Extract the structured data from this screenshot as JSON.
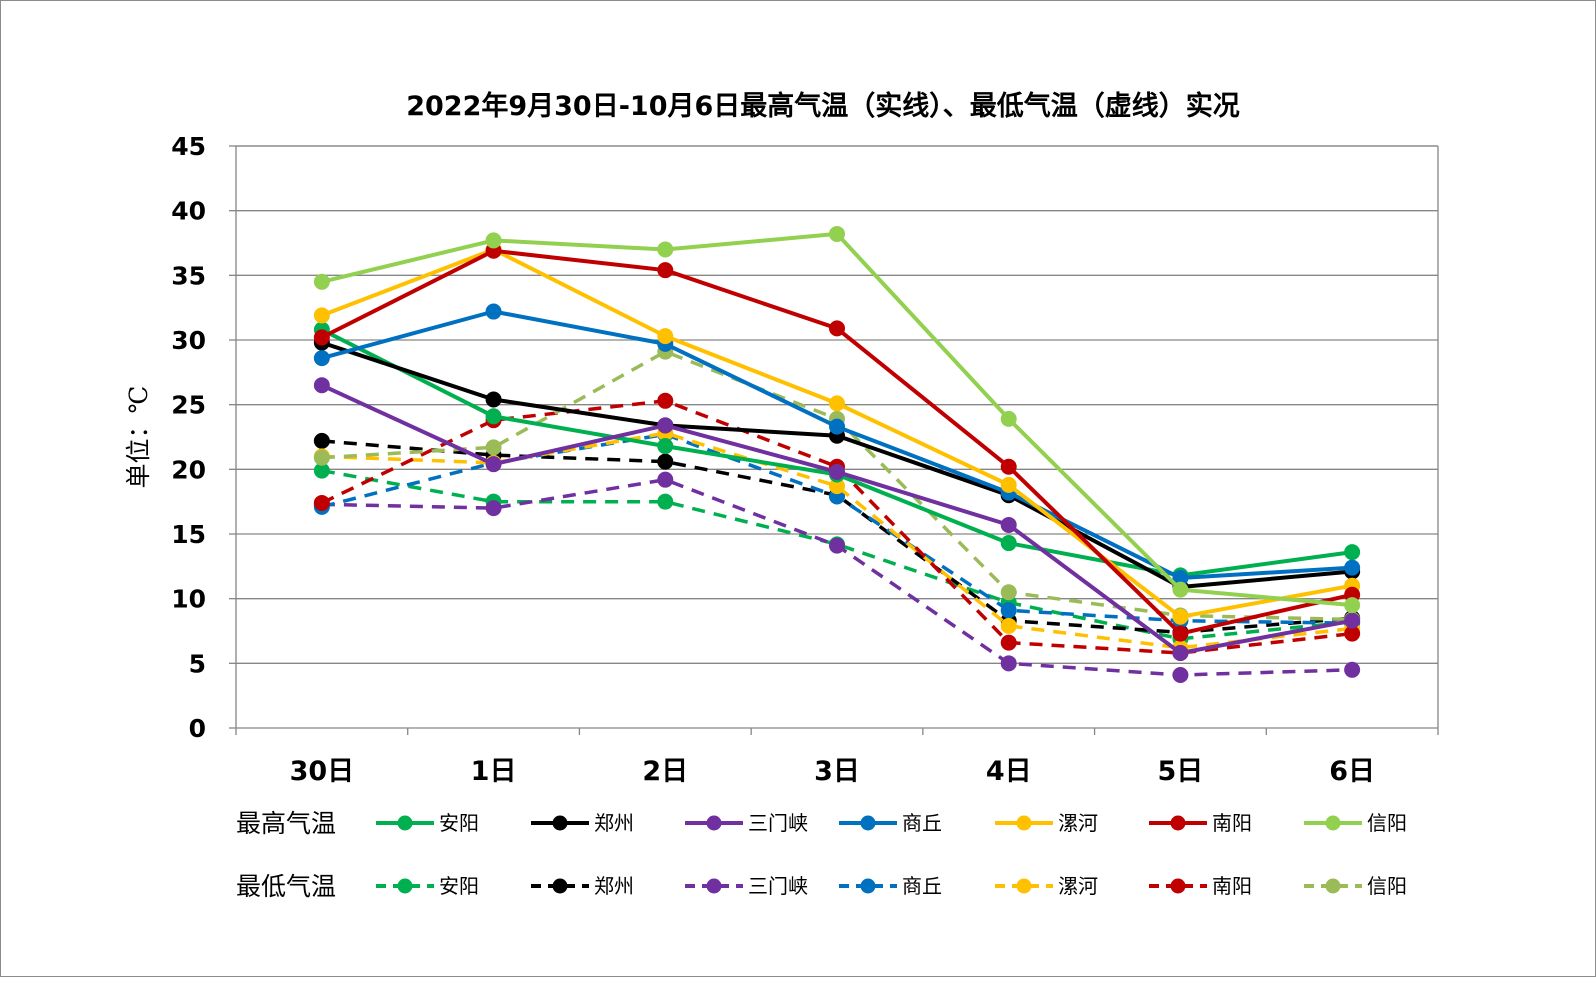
{
  "chart_data": {
    "type": "line",
    "title": "2022年9月30日-10月6日最高气温（实线）、最低气温（虚线）实况",
    "ylabel": "单位：℃",
    "xlabel": "",
    "categories": [
      "30日",
      "1日",
      "2日",
      "3日",
      "4日",
      "5日",
      "6日"
    ],
    "ylim": [
      0,
      45
    ],
    "yticks": [
      0,
      5,
      10,
      15,
      20,
      25,
      30,
      35,
      40,
      45
    ],
    "grid": true,
    "legend_position": "bottom",
    "legend_rows": [
      {
        "label": "最高气温",
        "style": "solid"
      },
      {
        "label": "最低气温",
        "style": "dashed"
      }
    ],
    "series": [
      {
        "name": "安阳",
        "group": "最高气温",
        "style": "solid",
        "color": "#00B050",
        "values": [
          30.8,
          24.1,
          21.8,
          19.6,
          14.3,
          11.8,
          13.6
        ]
      },
      {
        "name": "郑州",
        "group": "最高气温",
        "style": "solid",
        "color": "#000000",
        "values": [
          29.8,
          25.4,
          23.4,
          22.6,
          18.0,
          10.9,
          12.1
        ]
      },
      {
        "name": "三门峡",
        "group": "最高气温",
        "style": "solid",
        "color": "#7030A0",
        "values": [
          26.5,
          20.4,
          23.4,
          19.8,
          15.7,
          5.8,
          8.3
        ]
      },
      {
        "name": "商丘",
        "group": "最高气温",
        "style": "solid",
        "color": "#0070C0",
        "values": [
          28.6,
          32.2,
          29.7,
          23.3,
          18.2,
          11.6,
          12.4
        ]
      },
      {
        "name": "漯河",
        "group": "最高气温",
        "style": "solid",
        "color": "#FFC000",
        "values": [
          31.9,
          37.0,
          30.3,
          25.1,
          18.8,
          8.6,
          11.0
        ]
      },
      {
        "name": "南阳",
        "group": "最高气温",
        "style": "solid",
        "color": "#C00000",
        "values": [
          30.2,
          36.9,
          35.4,
          30.9,
          20.2,
          7.3,
          10.3
        ]
      },
      {
        "name": "信阳",
        "group": "最高气温",
        "style": "solid",
        "color": "#92D050",
        "values": [
          34.5,
          37.7,
          37.0,
          38.2,
          23.9,
          10.7,
          9.5
        ]
      },
      {
        "name": "安阳",
        "group": "最低气温",
        "style": "dashed",
        "color": "#00B050",
        "values": [
          19.9,
          17.5,
          17.5,
          14.2,
          9.7,
          6.9,
          8.2
        ]
      },
      {
        "name": "郑州",
        "group": "最低气温",
        "style": "dashed",
        "color": "#000000",
        "values": [
          22.2,
          21.1,
          20.6,
          18.0,
          8.3,
          7.4,
          8.5
        ]
      },
      {
        "name": "三门峡",
        "group": "最低气温",
        "style": "dashed",
        "color": "#7030A0",
        "values": [
          17.3,
          17.0,
          19.2,
          14.1,
          5.0,
          4.1,
          4.5
        ]
      },
      {
        "name": "商丘",
        "group": "最低气温",
        "style": "dashed",
        "color": "#0070C0",
        "values": [
          17.1,
          20.5,
          22.7,
          17.9,
          9.1,
          8.3,
          8.1
        ]
      },
      {
        "name": "漯河",
        "group": "最低气温",
        "style": "dashed",
        "color": "#FFC000",
        "values": [
          21.0,
          20.5,
          22.8,
          18.7,
          7.9,
          6.2,
          7.7
        ]
      },
      {
        "name": "南阳",
        "group": "最低气温",
        "style": "dashed",
        "color": "#C00000",
        "values": [
          17.4,
          23.8,
          25.3,
          20.2,
          6.6,
          5.8,
          7.3
        ]
      },
      {
        "name": "信阳",
        "group": "最低气温",
        "style": "dashed",
        "color": "#9BBB59",
        "values": [
          20.9,
          21.7,
          29.1,
          23.9,
          10.5,
          8.7,
          8.4
        ]
      }
    ]
  }
}
